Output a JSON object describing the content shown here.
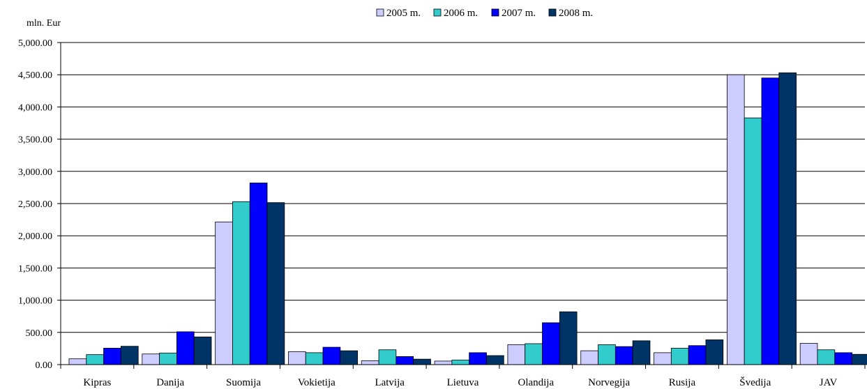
{
  "chart_data": {
    "type": "bar",
    "ylabel": "mln. Eur",
    "ylim": [
      0,
      5000
    ],
    "ytick_step": 500,
    "ytick_labels": [
      "0.00",
      "500.00",
      "1,000.00",
      "1,500.00",
      "2,000.00",
      "2,500.00",
      "3,000.00",
      "3,500.00",
      "4,000.00",
      "4,500.00",
      "5,000.00"
    ],
    "grid": true,
    "legend_position": "top-center",
    "categories": [
      "Kipras",
      "Danija",
      "Suomija",
      "Vokietija",
      "Latvija",
      "Lietuva",
      "Olandija",
      "Norvegija",
      "Rusija",
      "Švedija",
      "JAV"
    ],
    "series": [
      {
        "name": "2005 m.",
        "color": "#ccccff",
        "values": [
          90,
          165,
          2215,
          200,
          60,
          55,
          310,
          215,
          185,
          4500,
          330
        ]
      },
      {
        "name": "2006 m.",
        "color": "#33cccc",
        "values": [
          155,
          180,
          2530,
          185,
          230,
          70,
          325,
          310,
          255,
          3830,
          230
        ]
      },
      {
        "name": "2007 m.",
        "color": "#0000ff",
        "values": [
          255,
          510,
          2820,
          270,
          125,
          185,
          650,
          280,
          295,
          4450,
          185
        ]
      },
      {
        "name": "2008 m.",
        "color": "#003366",
        "values": [
          285,
          430,
          2515,
          215,
          85,
          140,
          820,
          370,
          385,
          4530,
          160
        ]
      }
    ]
  }
}
